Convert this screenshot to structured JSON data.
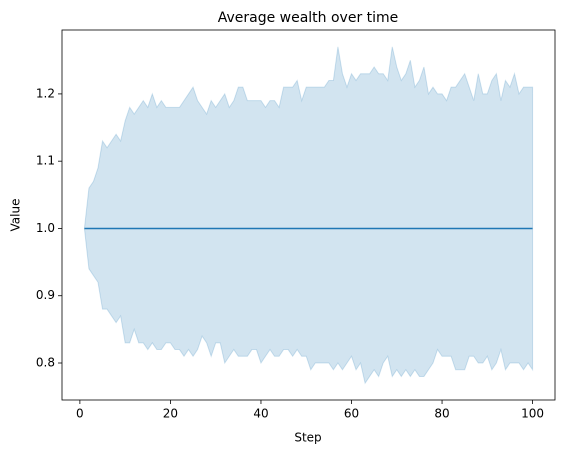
{
  "chart_data": {
    "type": "line",
    "title": "Average wealth over time",
    "x_label": "Step",
    "y_label": "Value",
    "x": [
      1,
      2,
      3,
      4,
      5,
      6,
      7,
      8,
      9,
      10,
      11,
      12,
      13,
      14,
      15,
      16,
      17,
      18,
      19,
      20,
      21,
      22,
      23,
      24,
      25,
      26,
      27,
      28,
      29,
      30,
      31,
      32,
      33,
      34,
      35,
      36,
      37,
      38,
      39,
      40,
      41,
      42,
      43,
      44,
      45,
      46,
      47,
      48,
      49,
      50,
      51,
      52,
      53,
      54,
      55,
      56,
      57,
      58,
      59,
      60,
      61,
      62,
      63,
      64,
      65,
      66,
      67,
      68,
      69,
      70,
      71,
      72,
      73,
      74,
      75,
      76,
      77,
      78,
      79,
      80,
      81,
      82,
      83,
      84,
      85,
      86,
      87,
      88,
      89,
      90,
      91,
      92,
      93,
      94,
      95,
      96,
      97,
      98,
      99,
      100
    ],
    "series": [
      {
        "color": "#1f77b4",
        "values": [
          1,
          1,
          1,
          1,
          1,
          1,
          1,
          1,
          1,
          1,
          1,
          1,
          1,
          1,
          1,
          1,
          1,
          1,
          1,
          1,
          1,
          1,
          1,
          1,
          1,
          1,
          1,
          1,
          1,
          1,
          1,
          1,
          1,
          1,
          1,
          1,
          1,
          1,
          1,
          1,
          1,
          1,
          1,
          1,
          1,
          1,
          1,
          1,
          1,
          1,
          1,
          1,
          1,
          1,
          1,
          1,
          1,
          1,
          1,
          1,
          1,
          1,
          1,
          1,
          1,
          1,
          1,
          1,
          1,
          1,
          1,
          1,
          1,
          1,
          1,
          1,
          1,
          1,
          1,
          1,
          1,
          1,
          1,
          1,
          1,
          1,
          1,
          1,
          1,
          1,
          1,
          1,
          1,
          1,
          1,
          1,
          1,
          1,
          1,
          1
        ]
      }
    ],
    "band_color": "#1f77b4",
    "upper": [
      1.0,
      1.06,
      1.07,
      1.09,
      1.13,
      1.12,
      1.13,
      1.14,
      1.13,
      1.16,
      1.18,
      1.17,
      1.18,
      1.19,
      1.18,
      1.2,
      1.18,
      1.19,
      1.18,
      1.18,
      1.18,
      1.18,
      1.19,
      1.2,
      1.21,
      1.19,
      1.18,
      1.17,
      1.19,
      1.18,
      1.19,
      1.2,
      1.18,
      1.19,
      1.21,
      1.21,
      1.19,
      1.19,
      1.19,
      1.19,
      1.18,
      1.19,
      1.19,
      1.18,
      1.21,
      1.21,
      1.21,
      1.22,
      1.19,
      1.21,
      1.21,
      1.21,
      1.21,
      1.21,
      1.22,
      1.22,
      1.27,
      1.23,
      1.21,
      1.23,
      1.22,
      1.23,
      1.23,
      1.23,
      1.24,
      1.23,
      1.23,
      1.22,
      1.27,
      1.24,
      1.22,
      1.23,
      1.25,
      1.21,
      1.22,
      1.24,
      1.2,
      1.21,
      1.2,
      1.2,
      1.19,
      1.21,
      1.21,
      1.22,
      1.23,
      1.21,
      1.19,
      1.23,
      1.2,
      1.2,
      1.22,
      1.23,
      1.19,
      1.22,
      1.21,
      1.23,
      1.2,
      1.21,
      1.21,
      1.21
    ],
    "lower": [
      1.0,
      0.94,
      0.93,
      0.92,
      0.88,
      0.88,
      0.87,
      0.86,
      0.87,
      0.83,
      0.83,
      0.85,
      0.83,
      0.83,
      0.82,
      0.83,
      0.82,
      0.82,
      0.83,
      0.83,
      0.82,
      0.82,
      0.81,
      0.82,
      0.81,
      0.82,
      0.84,
      0.83,
      0.81,
      0.83,
      0.83,
      0.8,
      0.81,
      0.82,
      0.81,
      0.81,
      0.81,
      0.82,
      0.82,
      0.8,
      0.81,
      0.82,
      0.81,
      0.81,
      0.82,
      0.82,
      0.81,
      0.82,
      0.81,
      0.81,
      0.79,
      0.8,
      0.8,
      0.8,
      0.8,
      0.79,
      0.8,
      0.79,
      0.8,
      0.81,
      0.79,
      0.8,
      0.77,
      0.78,
      0.79,
      0.78,
      0.8,
      0.81,
      0.78,
      0.79,
      0.78,
      0.79,
      0.78,
      0.79,
      0.78,
      0.78,
      0.79,
      0.8,
      0.82,
      0.81,
      0.81,
      0.81,
      0.79,
      0.79,
      0.79,
      0.81,
      0.81,
      0.8,
      0.8,
      0.81,
      0.79,
      0.8,
      0.82,
      0.79,
      0.8,
      0.8,
      0.8,
      0.79,
      0.8,
      0.79
    ],
    "xlim": [
      -3.95,
      104.95
    ],
    "ylim": [
      0.745,
      1.295
    ],
    "xticks": [
      0,
      20,
      40,
      60,
      80,
      100
    ],
    "yticks": [
      0.8,
      0.9,
      {
        "value": 1,
        "label": "1.0"
      },
      1.1,
      1.2
    ]
  }
}
